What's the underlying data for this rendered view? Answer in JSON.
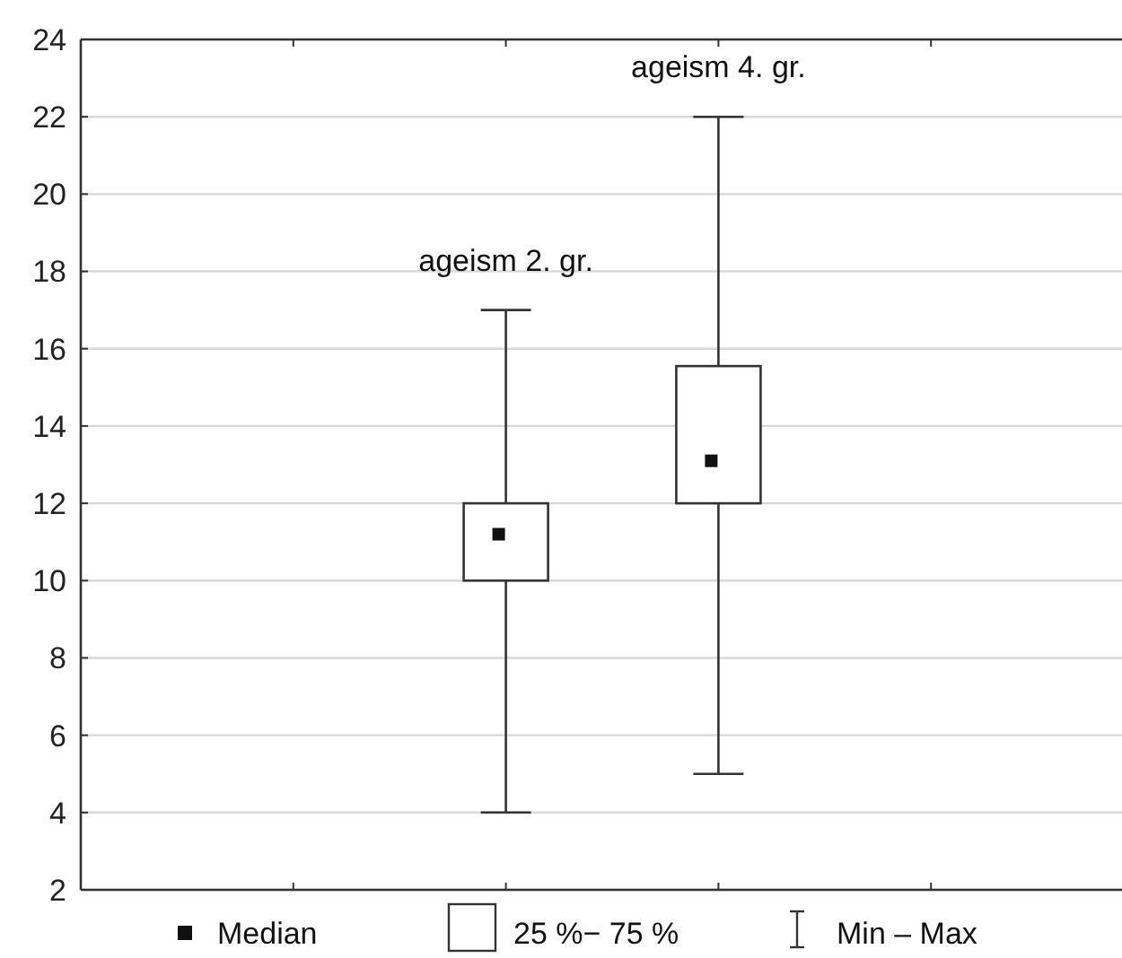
{
  "chart_data": {
    "type": "box",
    "categories": [
      null,
      "ageism 2. gr.",
      "ageism 4. gr.",
      null
    ],
    "boxes": [
      null,
      {
        "low": 4,
        "q1": 10,
        "median": 11.2,
        "q3": 12,
        "high": 17
      },
      {
        "low": 5,
        "q1": 12,
        "median": 13.1,
        "q3": 15.55,
        "high": 22
      },
      null
    ],
    "ylim": [
      2,
      24
    ],
    "yticks": [
      2,
      4,
      6,
      8,
      10,
      12,
      14,
      16,
      18,
      20,
      22,
      24
    ],
    "grid": "y",
    "marker": "square",
    "annotations": [
      "Median",
      "25 %− 75 %",
      "Min – Max"
    ]
  }
}
